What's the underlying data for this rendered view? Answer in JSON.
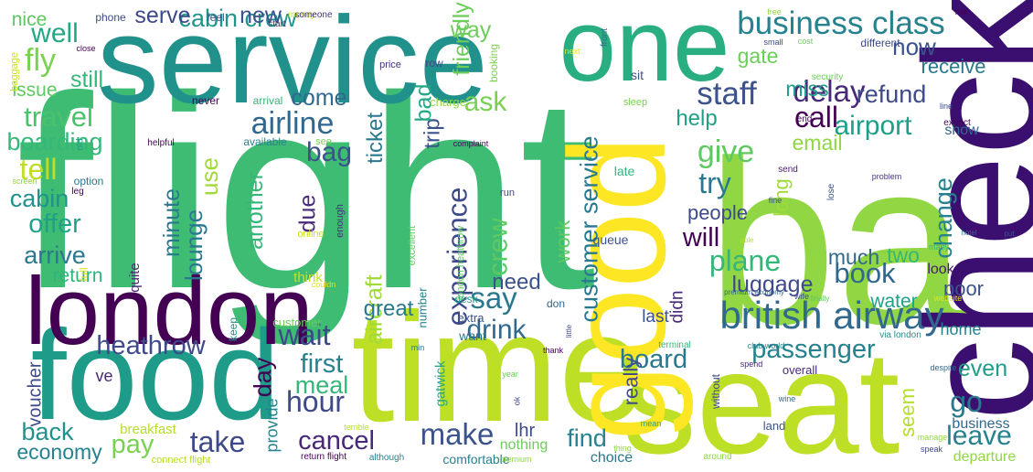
{
  "words": [
    {
      "text": "flight",
      "color": "#3fbc73"
    },
    {
      "text": "service",
      "color": "#21918c"
    },
    {
      "text": "ba",
      "color": "#90d743"
    },
    {
      "text": "time",
      "color": "#bddf26"
    },
    {
      "text": "seat",
      "color": "#bddf26"
    },
    {
      "text": "food",
      "color": "#1e9c89"
    },
    {
      "text": "london",
      "color": "#440154"
    },
    {
      "text": "one",
      "color": "#28ae80"
    },
    {
      "text": "check",
      "color": "#3b0f70"
    },
    {
      "text": "good",
      "color": "#fde725"
    },
    {
      "text": "british airway",
      "color": "#31688e"
    },
    {
      "text": "business class",
      "color": "#26828e"
    },
    {
      "text": "heathrow",
      "color": "#3e4a89"
    },
    {
      "text": "airline",
      "color": "#31688e"
    },
    {
      "text": "cabin crew",
      "color": "#1f968b"
    },
    {
      "text": "customer service",
      "color": "#2a788e"
    },
    {
      "text": "experience",
      "color": "#3e4989"
    },
    {
      "text": "passenger",
      "color": "#26828e"
    },
    {
      "text": "airport",
      "color": "#1f9e89"
    },
    {
      "text": "staff",
      "color": "#3b528b"
    },
    {
      "text": "well",
      "color": "#22a884"
    },
    {
      "text": "fly",
      "color": "#7ad151"
    },
    {
      "text": "travel",
      "color": "#4ac16d"
    },
    {
      "text": "delay",
      "color": "#482878"
    },
    {
      "text": "bag",
      "color": "#3b528b"
    },
    {
      "text": "ask",
      "color": "#7ad151"
    },
    {
      "text": "call",
      "color": "#440154"
    },
    {
      "text": "refund",
      "color": "#3e4a89"
    },
    {
      "text": "give",
      "color": "#5ec962"
    },
    {
      "text": "try",
      "color": "#2a788e"
    },
    {
      "text": "will",
      "color": "#440154"
    },
    {
      "text": "plane",
      "color": "#35b779"
    },
    {
      "text": "book",
      "color": "#31688e"
    },
    {
      "text": "luggage",
      "color": "#3e4a89"
    },
    {
      "text": "say",
      "color": "#2a788e"
    },
    {
      "text": "drink",
      "color": "#31688e"
    },
    {
      "text": "crew",
      "color": "#5ec962"
    },
    {
      "text": "board",
      "color": "#2a788e"
    },
    {
      "text": "wait",
      "color": "#3e4989"
    },
    {
      "text": "hour",
      "color": "#3e4989"
    },
    {
      "text": "first",
      "color": "#26828e"
    },
    {
      "text": "meal",
      "color": "#35b779"
    },
    {
      "text": "cancel",
      "color": "#482878"
    },
    {
      "text": "make",
      "color": "#3b528b"
    },
    {
      "text": "take",
      "color": "#3e4989"
    },
    {
      "text": "pay",
      "color": "#7ad151"
    },
    {
      "text": "back",
      "color": "#21918c"
    },
    {
      "text": "economy",
      "color": "#26828e"
    },
    {
      "text": "go",
      "color": "#2a788e"
    },
    {
      "text": "leave",
      "color": "#26828e"
    },
    {
      "text": "even",
      "color": "#1f9e89"
    },
    {
      "text": "tell",
      "color": "#bddf26"
    },
    {
      "text": "offer",
      "color": "#1fa187"
    },
    {
      "text": "cabin",
      "color": "#21918c"
    },
    {
      "text": "arrive",
      "color": "#2a788e"
    },
    {
      "text": "boarding",
      "color": "#35b779"
    },
    {
      "text": "lounge",
      "color": "#2a788e"
    },
    {
      "text": "use",
      "color": "#a0da39"
    },
    {
      "text": "minute",
      "color": "#2a788e"
    },
    {
      "text": "aircraft",
      "color": "#a0da39"
    },
    {
      "text": "another",
      "color": "#35b779"
    },
    {
      "text": "due",
      "color": "#482878"
    },
    {
      "text": "day",
      "color": "#440154"
    },
    {
      "text": "ticket",
      "color": "#2a788e"
    },
    {
      "text": "trip",
      "color": "#3b528b"
    },
    {
      "text": "bad",
      "color": "#22a884"
    },
    {
      "text": "friendly",
      "color": "#6ccd5a"
    },
    {
      "text": "way",
      "color": "#6ccd5a"
    },
    {
      "text": "come",
      "color": "#31688e"
    },
    {
      "text": "serve",
      "color": "#3e4989"
    },
    {
      "text": "new",
      "color": "#3b528b"
    },
    {
      "text": "still",
      "color": "#35b779"
    },
    {
      "text": "nice",
      "color": "#5ec962"
    },
    {
      "text": "issue",
      "color": "#5ec962"
    },
    {
      "text": "return",
      "color": "#2fb47c"
    },
    {
      "text": "need",
      "color": "#3b528b"
    },
    {
      "text": "great",
      "color": "#2a788e"
    },
    {
      "text": "help",
      "color": "#1fa187"
    },
    {
      "text": "email",
      "color": "#8fd744"
    },
    {
      "text": "change",
      "color": "#26828e"
    },
    {
      "text": "long",
      "color": "#a0da39"
    },
    {
      "text": "people",
      "color": "#3e4a89"
    },
    {
      "text": "much",
      "color": "#31688e"
    },
    {
      "text": "two",
      "color": "#35b779"
    },
    {
      "text": "didn",
      "color": "#482878"
    },
    {
      "text": "poor",
      "color": "#3b528b"
    },
    {
      "text": "water",
      "color": "#1fa187"
    },
    {
      "text": "look",
      "color": "#481a6c"
    },
    {
      "text": "now",
      "color": "#3b528b"
    },
    {
      "text": "receive",
      "color": "#2a788e"
    },
    {
      "text": "gate",
      "color": "#6ccd5a"
    },
    {
      "text": "miss",
      "color": "#1f9e89"
    },
    {
      "text": "work",
      "color": "#5ec962"
    },
    {
      "text": "really",
      "color": "#3e4a89"
    },
    {
      "text": "find",
      "color": "#26828e"
    },
    {
      "text": "seem",
      "color": "#b5de2b"
    },
    {
      "text": "voucher",
      "color": "#3e4a89"
    },
    {
      "text": "provide",
      "color": "#26828e"
    },
    {
      "text": "lhr",
      "color": "#3e4989"
    },
    {
      "text": "last",
      "color": "#3b528b"
    },
    {
      "text": "home",
      "color": "#26828e"
    },
    {
      "text": "show",
      "color": "#31688e"
    },
    {
      "text": "business",
      "color": "#31688e"
    },
    {
      "text": "departure",
      "color": "#8fd744"
    },
    {
      "text": "choice",
      "color": "#2a788e"
    },
    {
      "text": "nothing",
      "color": "#6ccd5a"
    },
    {
      "text": "comfortable",
      "color": "#26828e"
    },
    {
      "text": "breakfast",
      "color": "#b5de2b"
    },
    {
      "text": "quite",
      "color": "#482878"
    },
    {
      "text": "full",
      "color": "#dfe318"
    },
    {
      "text": "think",
      "color": "#cae11f"
    },
    {
      "text": "keep",
      "color": "#21918c"
    },
    {
      "text": "customer",
      "color": "#6ccd5a"
    },
    {
      "text": "gatwick",
      "color": "#22a884"
    },
    {
      "text": "want",
      "color": "#2a788e"
    },
    {
      "text": "extra",
      "color": "#3b528b"
    },
    {
      "text": "number",
      "color": "#26828e"
    },
    {
      "text": "don",
      "color": "#31688e"
    },
    {
      "text": "desk",
      "color": "#1f9e89"
    },
    {
      "text": "online",
      "color": "#cae11f"
    },
    {
      "text": "enough",
      "color": "#46337e"
    },
    {
      "text": "excellent",
      "color": "#5ec962"
    },
    {
      "text": "london heathrow",
      "color": "#5ec962"
    },
    {
      "text": "queue",
      "color": "#3b528b"
    },
    {
      "text": "late",
      "color": "#2fb47c"
    },
    {
      "text": "run",
      "color": "#3e4989"
    },
    {
      "text": "sleep",
      "color": "#7ad151"
    },
    {
      "text": "charge",
      "color": "#8fd744"
    },
    {
      "text": "row",
      "color": "#3e4a89"
    },
    {
      "text": "booking",
      "color": "#7ad151"
    },
    {
      "text": "price",
      "color": "#46337e"
    },
    {
      "text": "phone",
      "color": "#3e4a89"
    },
    {
      "text": "feel",
      "color": "#3e4989"
    },
    {
      "text": "money",
      "color": "#cae11f"
    },
    {
      "text": "start",
      "color": "#46337e"
    },
    {
      "text": "someone",
      "color": "#46337e"
    },
    {
      "text": "never",
      "color": "#440154"
    },
    {
      "text": "arrival",
      "color": "#35b779"
    },
    {
      "text": "available",
      "color": "#26828e"
    },
    {
      "text": "see",
      "color": "#7ad151"
    },
    {
      "text": "helpful",
      "color": "#440154"
    },
    {
      "text": "option",
      "color": "#2a788e"
    },
    {
      "text": "leg",
      "color": "#440154"
    },
    {
      "text": "screen",
      "color": "#8fd744"
    },
    {
      "text": "old",
      "color": "#1f9e89"
    },
    {
      "text": "close",
      "color": "#440154"
    },
    {
      "text": "baggage",
      "color": "#cae11f"
    },
    {
      "text": "sit",
      "color": "#3b528b"
    },
    {
      "text": "next",
      "color": "#dfe318"
    },
    {
      "text": "front",
      "color": "#31688e"
    },
    {
      "text": "complaint",
      "color": "#440154"
    },
    {
      "text": "couldn",
      "color": "#dfe318"
    },
    {
      "text": "ve",
      "color": "#482878"
    },
    {
      "text": "connect flight",
      "color": "#b5de2b"
    },
    {
      "text": "terrible",
      "color": "#b5de2b"
    },
    {
      "text": "return flight",
      "color": "#440154"
    },
    {
      "text": "although",
      "color": "#26828e"
    },
    {
      "text": "premium",
      "color": "#8fd744"
    },
    {
      "text": "thing",
      "color": "#8fd744"
    },
    {
      "text": "ok",
      "color": "#3e4a89"
    },
    {
      "text": "year",
      "color": "#6ccd5a"
    },
    {
      "text": "min",
      "color": "#2a788e"
    },
    {
      "text": "thank",
      "color": "#440154"
    },
    {
      "text": "little",
      "color": "#3e4a89"
    },
    {
      "text": "terminal",
      "color": "#35b779"
    },
    {
      "text": "mean",
      "color": "#1f9e89"
    },
    {
      "text": "around",
      "color": "#8fd744"
    },
    {
      "text": "without",
      "color": "#3e4a89"
    },
    {
      "text": "spend",
      "color": "#482878"
    },
    {
      "text": "overall",
      "color": "#482878"
    },
    {
      "text": "land",
      "color": "#3b528b"
    },
    {
      "text": "wine",
      "color": "#31688e"
    },
    {
      "text": "club world",
      "color": "#26828e"
    },
    {
      "text": "via london",
      "color": "#21918c"
    },
    {
      "text": "wife",
      "color": "#3e4a89"
    },
    {
      "text": "finally",
      "color": "#5ec962"
    },
    {
      "text": "premium economy",
      "color": "#31688e"
    },
    {
      "text": "able",
      "color": "#b5de2b"
    },
    {
      "text": "fine",
      "color": "#3e4a89"
    },
    {
      "text": "send",
      "color": "#481a6c"
    },
    {
      "text": "lose",
      "color": "#3b528b"
    },
    {
      "text": "problem",
      "color": "#46337e"
    },
    {
      "text": "many",
      "color": "#35b779"
    },
    {
      "text": "put",
      "color": "#3b528b"
    },
    {
      "text": "hotel",
      "color": "#31688e"
    },
    {
      "text": "website",
      "color": "#dfe318"
    },
    {
      "text": "expect",
      "color": "#440154"
    },
    {
      "text": "despite",
      "color": "#31688e"
    },
    {
      "text": "speak",
      "color": "#3e4a89"
    },
    {
      "text": "manage",
      "color": "#8fd744"
    },
    {
      "text": "end",
      "color": "#440154"
    },
    {
      "text": "line",
      "color": "#3e4a89"
    },
    {
      "text": "security",
      "color": "#6ccd5a"
    },
    {
      "text": "different",
      "color": "#3e4a89"
    },
    {
      "text": "small",
      "color": "#3e4a89"
    },
    {
      "text": "cost",
      "color": "#6ccd5a"
    },
    {
      "text": "free",
      "color": "#8fd744"
    },
    {
      "text": "half",
      "color": "#440154"
    },
    {
      "text": "allow",
      "color": "#46337e"
    },
    {
      "text": "know",
      "color": "#3e4a89"
    }
  ]
}
